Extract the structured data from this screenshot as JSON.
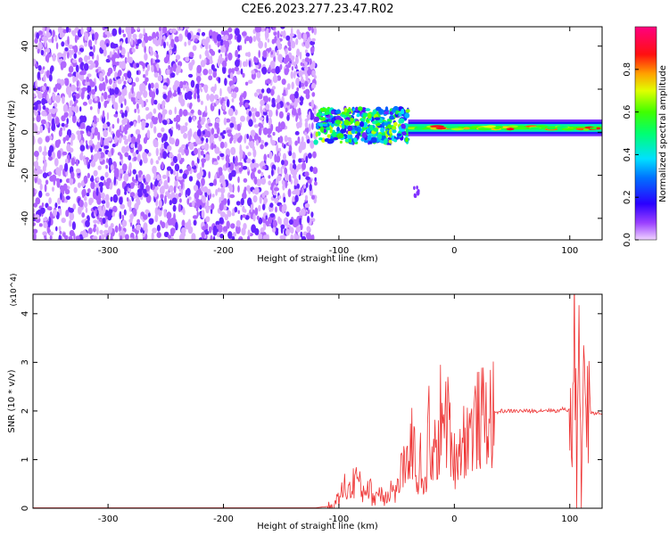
{
  "title": "C2E6.2023.277.23.47.R02",
  "chart_data": [
    {
      "type": "heatmap",
      "xlabel": "Height of straight line (km)",
      "ylabel": "Frequency (Hz)",
      "xlim": [
        -365,
        128
      ],
      "ylim": [
        -50,
        49
      ],
      "x_ticks": [
        -300,
        -200,
        -100,
        0,
        100
      ],
      "y_ticks": [
        -40,
        -20,
        0,
        20,
        40
      ],
      "grid": false,
      "colorbar": {
        "label": "Normalized spectral amplitude",
        "range": [
          0,
          1
        ],
        "ticks": [
          "0.0",
          "0.2",
          "0.4",
          "0.6",
          "0.8"
        ]
      },
      "regions": [
        {
          "name": "noise",
          "x_range": [
            -365,
            -120
          ],
          "y_range": [
            -50,
            49
          ],
          "amplitude": 0.08
        },
        {
          "name": "scattered-signal",
          "x_range": [
            -120,
            -40
          ],
          "y_center": 3,
          "y_spread": 8,
          "amplitude": 0.4
        },
        {
          "name": "sporadic-dots",
          "x_range": [
            -35,
            -30
          ],
          "y_range": [
            -30,
            -24
          ],
          "amplitude": 0.08
        },
        {
          "name": "carrier-line",
          "x_range": [
            -40,
            128
          ],
          "y_center": 2,
          "y_spread": 3,
          "amplitude": 0.75
        }
      ]
    },
    {
      "type": "line",
      "xlabel": "Height of straight line (km)",
      "ylabel": "SNR (10 * v/v)",
      "y_exponent": "(x10^4)",
      "xlim": [
        -365,
        128
      ],
      "ylim": [
        0,
        4.4
      ],
      "x_ticks": [
        -300,
        -200,
        -100,
        0,
        100
      ],
      "y_ticks": [
        0,
        1,
        2,
        3,
        4
      ],
      "grid": false,
      "series": [
        {
          "color": "#ee3333",
          "x": [
            -365,
            -300,
            -200,
            -120,
            -105,
            -100,
            -95,
            -90,
            -85,
            -80,
            -75,
            -70,
            -65,
            -60,
            -55,
            -50,
            -45,
            -42,
            -38,
            -35,
            -32,
            -30,
            -28,
            -25,
            -22,
            -20,
            -18,
            -15,
            -12,
            -10,
            -8,
            -5,
            0,
            5,
            10,
            15,
            20,
            25,
            30,
            35,
            40,
            50,
            60,
            70,
            80,
            90,
            95,
            100,
            102,
            104,
            106,
            108,
            110,
            112,
            114,
            116,
            120,
            128
          ],
          "y": [
            0.01,
            0.01,
            0.01,
            0.01,
            0.05,
            0.2,
            0.45,
            0.35,
            0.7,
            0.3,
            0.5,
            0.2,
            0.35,
            0.25,
            0.4,
            0.3,
            0.9,
            0.6,
            1.5,
            1.2,
            0.5,
            1.1,
            0.7,
            0.4,
            1.7,
            0.6,
            1.3,
            1.0,
            1.9,
            1.5,
            1.9,
            1.7,
            1.0,
            1.3,
            1.5,
            1.6,
            1.8,
            1.85,
            1.9,
            1.95,
            2.0,
            2.0,
            2.0,
            2.0,
            2.02,
            2.0,
            2.05,
            2.0,
            1.8,
            3.9,
            0.6,
            4.4,
            0.3,
            3.8,
            1.5,
            2.0,
            1.95,
            1.95
          ]
        }
      ]
    }
  ]
}
